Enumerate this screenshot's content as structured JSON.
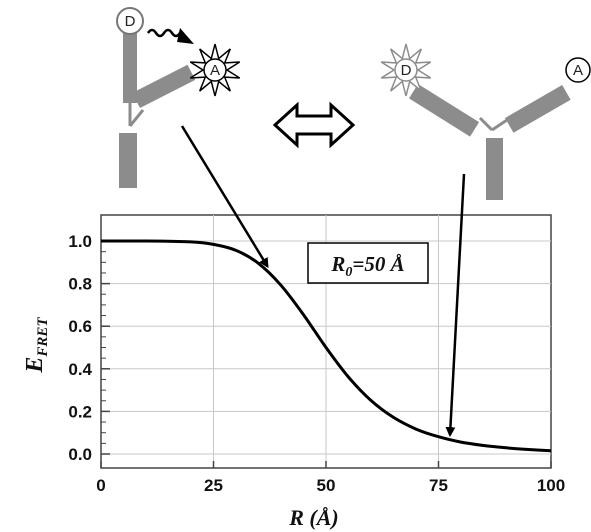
{
  "chart_data": {
    "type": "line",
    "xlabel": "R",
    "xlabel_unit": "(Å)",
    "ylabel": "E",
    "ylabel_sub": "FRET",
    "xlim": [
      0,
      100
    ],
    "ylim": [
      0,
      1.05
    ],
    "x_ticks": [
      0,
      25,
      50,
      75,
      100
    ],
    "x_tick_labels": [
      "0",
      "25",
      "50",
      "75",
      "100"
    ],
    "y_ticks": [
      0.0,
      0.2,
      0.4,
      0.6,
      0.8,
      1.0
    ],
    "y_tick_labels": [
      "0.0",
      "0.2",
      "0.4",
      "0.6",
      "0.8",
      "1.0"
    ],
    "grid": true,
    "series": [
      {
        "x": [
          0,
          10,
          20,
          25,
          30,
          35,
          40,
          45,
          50,
          55,
          60,
          65,
          70,
          75,
          80,
          85,
          90,
          95,
          100
        ],
        "y": [
          1.0,
          1.0,
          0.996,
          0.984,
          0.956,
          0.895,
          0.792,
          0.654,
          0.5,
          0.361,
          0.251,
          0.172,
          0.117,
          0.081,
          0.056,
          0.04,
          0.029,
          0.021,
          0.015
        ]
      }
    ],
    "annotation": {
      "label_main": "R",
      "label_sub": "0",
      "label_rest": "=50 Å"
    },
    "arrows": [
      {
        "target_x": 37,
        "target_y": 0.89
      },
      {
        "target_x": 78,
        "target_y": 0.07
      }
    ]
  },
  "diagram": {
    "left": {
      "donor_letter": "D",
      "acceptor_letter": "A"
    },
    "right": {
      "donor_letter": "D",
      "acceptor_letter": "A"
    }
  },
  "colors": {
    "rod": "#8c8c8c",
    "curve": "#000000",
    "grid": "#c8c8c8"
  }
}
